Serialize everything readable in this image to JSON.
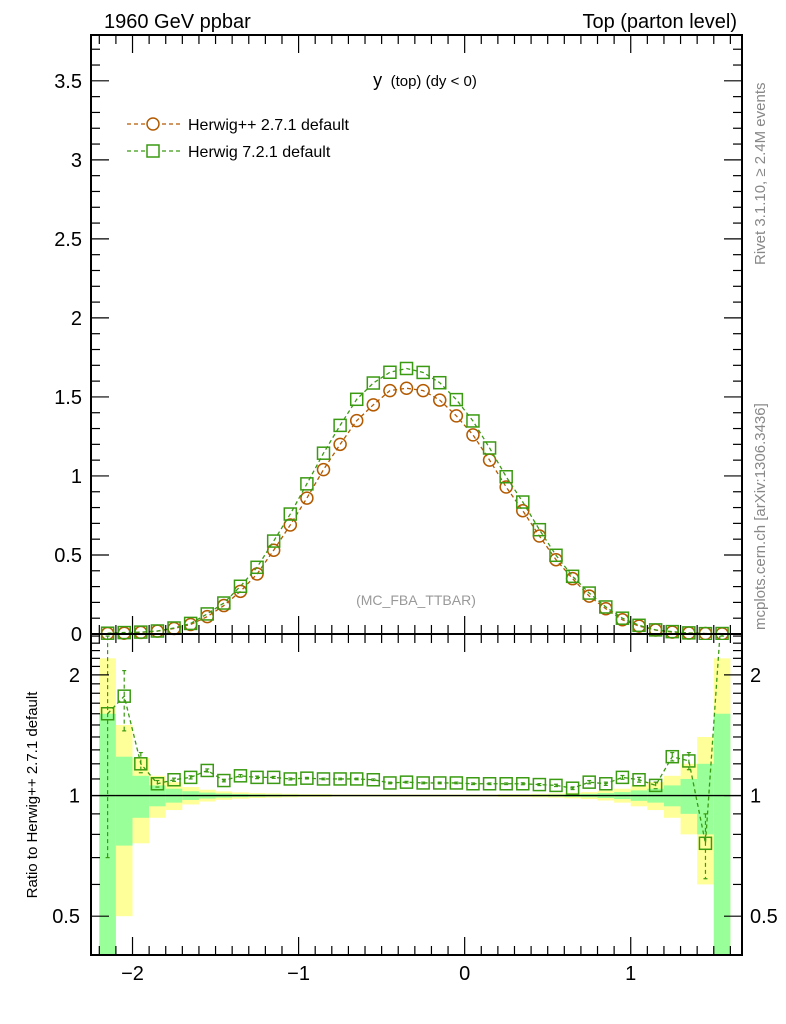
{
  "header": {
    "left": "1960 GeV ppbar",
    "right": "Top (parton level)"
  },
  "side_labels": {
    "rivet": "Rivet 3.1.10, ≥ 2.4M events",
    "mcplots": "mcplots.cern.ch [arXiv:1306.3436]"
  },
  "colors": {
    "herwigpp": "#b35a00",
    "herwig7": "#3a9a12",
    "band_1sigma": "#99ff99",
    "band_2sigma": "#ffff99"
  },
  "chart_data": [
    {
      "type": "line",
      "title_main": "y",
      "title_sub": "(top) (dy < 0)",
      "watermark": "(MC_FBA_TTBAR)",
      "xlim": [
        -2.25,
        1.67
      ],
      "ylim": [
        0,
        3.79
      ],
      "yticks": [
        0,
        0.5,
        1,
        1.5,
        2,
        2.5,
        3,
        3.5
      ],
      "ytick_labels": [
        "0",
        "0.5",
        "1",
        "1.5",
        "2",
        "2.5",
        "3",
        "3.5"
      ],
      "grid": false,
      "legend_placement": "top-left",
      "x": [
        -2.15,
        -2.05,
        -1.95,
        -1.85,
        -1.75,
        -1.65,
        -1.55,
        -1.45,
        -1.35,
        -1.25,
        -1.15,
        -1.05,
        -0.95,
        -0.85,
        -0.75,
        -0.65,
        -0.55,
        -0.45,
        -0.35,
        -0.25,
        -0.15,
        -0.05,
        0.05,
        0.15,
        0.25,
        0.35,
        0.45,
        0.55,
        0.65,
        0.75,
        0.85,
        0.95,
        1.05,
        1.15,
        1.25,
        1.35,
        1.45,
        1.55
      ],
      "series": [
        {
          "name": "Herwig++ 2.7.1 default",
          "marker": "circle",
          "values": [
            0.003,
            0.005,
            0.01,
            0.018,
            0.035,
            0.06,
            0.11,
            0.18,
            0.27,
            0.38,
            0.53,
            0.69,
            0.86,
            1.04,
            1.2,
            1.35,
            1.45,
            1.54,
            1.555,
            1.54,
            1.48,
            1.38,
            1.26,
            1.1,
            0.93,
            0.78,
            0.62,
            0.47,
            0.35,
            0.24,
            0.16,
            0.09,
            0.05,
            0.025,
            0.012,
            0.006,
            0.003,
            0.001
          ]
        },
        {
          "name": "Herwig 7.2.1 default",
          "marker": "square",
          "values": [
            0.005,
            0.009,
            0.012,
            0.019,
            0.038,
            0.067,
            0.127,
            0.196,
            0.302,
            0.422,
            0.588,
            0.759,
            0.95,
            1.144,
            1.32,
            1.485,
            1.588,
            1.656,
            1.68,
            1.655,
            1.59,
            1.483,
            1.348,
            1.177,
            0.995,
            0.835,
            0.66,
            0.498,
            0.365,
            0.259,
            0.171,
            0.1,
            0.055,
            0.026,
            0.015,
            0.007,
            0.0023,
            0.003
          ]
        }
      ]
    },
    {
      "type": "line",
      "ylabel": "Ratio to Herwig++ 2.7.1 default",
      "yscale": "log",
      "ylim": [
        0.4,
        2.53
      ],
      "yticks": [
        0.5,
        1,
        2
      ],
      "ytick_labels": [
        "0.5",
        "1",
        "2"
      ],
      "xticks": [
        -2,
        -1,
        0,
        1
      ],
      "xtick_labels": [
        "−2",
        "−1",
        "0",
        "1"
      ],
      "reference": 1,
      "band_rel_err": [
        0.6,
        0.25,
        0.12,
        0.06,
        0.04,
        0.025,
        0.017,
        0.012,
        0.009,
        0.007,
        0.006,
        0.005,
        0.004,
        0.004,
        0.003,
        0.003,
        0.003,
        0.003,
        0.003,
        0.003,
        0.003,
        0.003,
        0.003,
        0.003,
        0.004,
        0.004,
        0.005,
        0.006,
        0.008,
        0.01,
        0.014,
        0.02,
        0.03,
        0.04,
        0.06,
        0.1,
        0.2,
        0.6
      ],
      "series": [
        {
          "name": "Herwig 7.2.1 default / Herwig++ 2.7.1 default",
          "values": [
            1.6,
            1.77,
            1.2,
            1.07,
            1.095,
            1.11,
            1.155,
            1.09,
            1.12,
            1.11,
            1.11,
            1.1,
            1.105,
            1.1,
            1.1,
            1.1,
            1.095,
            1.075,
            1.08,
            1.075,
            1.075,
            1.075,
            1.07,
            1.07,
            1.07,
            1.07,
            1.065,
            1.06,
            1.043,
            1.08,
            1.07,
            1.11,
            1.095,
            1.06,
            1.25,
            1.22,
            0.76,
            3.0
          ],
          "err_low": [
            0.9,
            0.32,
            0.06,
            0.02,
            0.01,
            0.01,
            0.01,
            0.008,
            0.008,
            0.008,
            0.006,
            0.006,
            0.005,
            0.005,
            0.005,
            0.005,
            0.005,
            0.005,
            0.005,
            0.005,
            0.005,
            0.005,
            0.005,
            0.005,
            0.005,
            0.006,
            0.006,
            0.007,
            0.008,
            0.01,
            0.01,
            0.012,
            0.015,
            0.02,
            0.03,
            0.06,
            0.14,
            0.5
          ],
          "err_high": [
            0.9,
            0.28,
            0.08,
            0.02,
            0.01,
            0.01,
            0.01,
            0.008,
            0.008,
            0.008,
            0.006,
            0.006,
            0.005,
            0.005,
            0.005,
            0.005,
            0.005,
            0.005,
            0.005,
            0.005,
            0.005,
            0.005,
            0.005,
            0.005,
            0.005,
            0.006,
            0.006,
            0.007,
            0.008,
            0.01,
            0.01,
            0.012,
            0.015,
            0.02,
            0.03,
            0.06,
            0.14,
            0.5
          ]
        }
      ]
    }
  ]
}
